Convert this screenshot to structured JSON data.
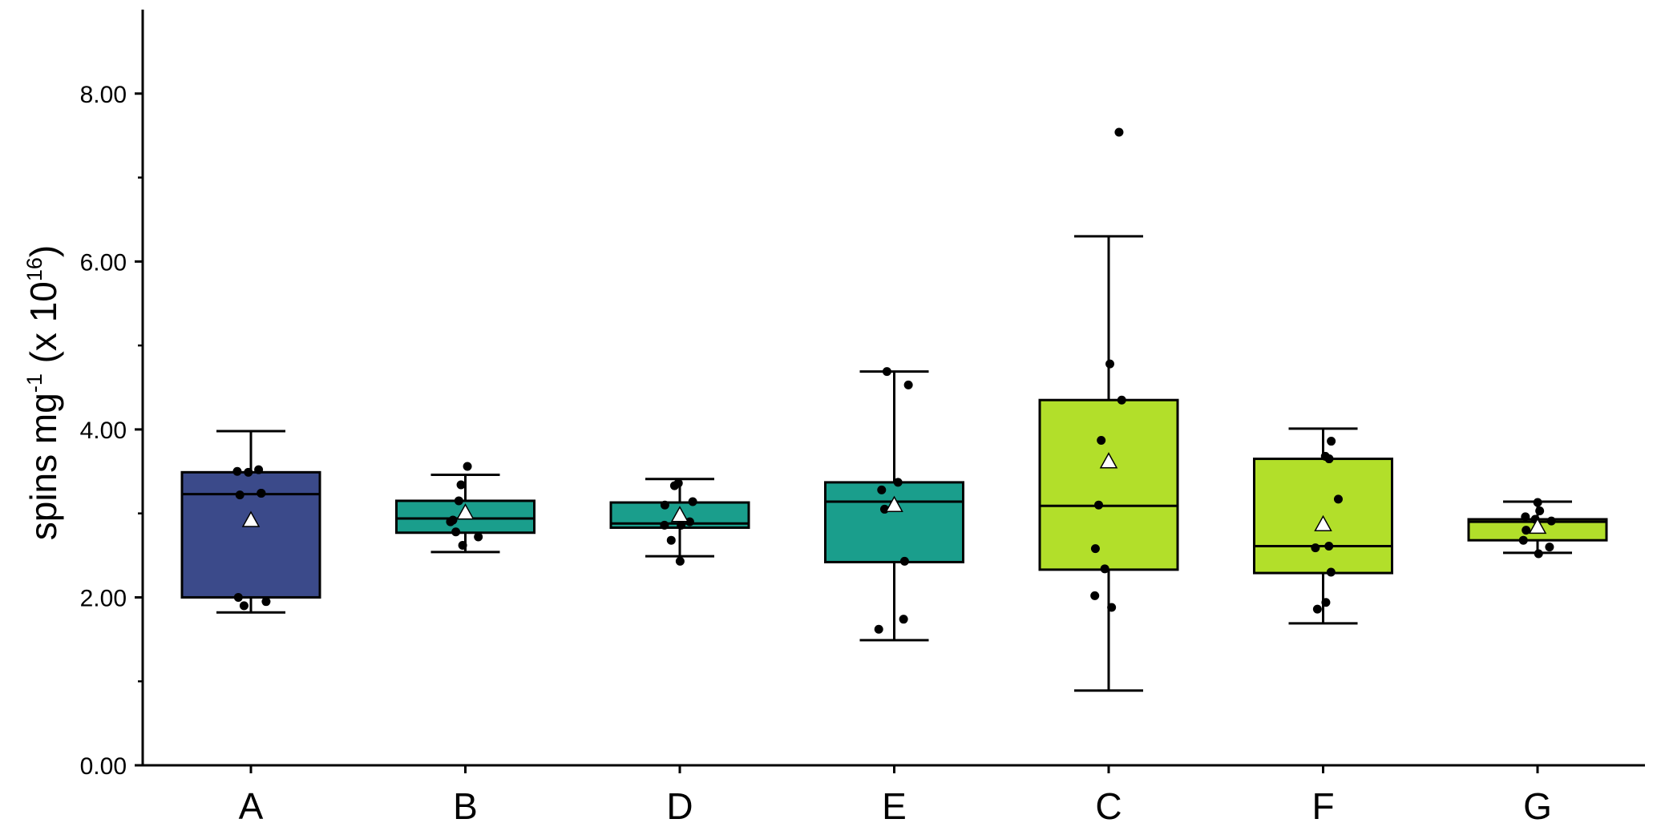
{
  "chart_data": {
    "type": "box",
    "categories": [
      "A",
      "B",
      "D",
      "E",
      "C",
      "F",
      "G"
    ],
    "ylabel": {
      "base": "spins mg",
      "exp1": "-1",
      "mid": " (x 10",
      "exp2": "16",
      "end": ")"
    },
    "ylim": [
      0,
      9
    ],
    "yticks": [
      0,
      2,
      4,
      6,
      8
    ],
    "ytick_labels": [
      "0.00",
      "2.00",
      "4.00",
      "6.00",
      "8.00"
    ],
    "y_minor_ticks": [
      1,
      3,
      5,
      7
    ],
    "grid": false,
    "series": [
      {
        "category": "A",
        "color": "#3b4a8a",
        "whisker_low": 1.82,
        "q1": 2.0,
        "median": 3.23,
        "q3": 3.49,
        "whisker_high": 3.98,
        "mean": 2.92,
        "points": [
          3.52,
          3.5,
          3.49,
          3.24,
          3.22,
          3.24,
          2.0,
          1.95,
          1.9
        ]
      },
      {
        "category": "B",
        "color": "#1a9e8c",
        "whisker_low": 2.54,
        "q1": 2.77,
        "median": 2.94,
        "q3": 3.15,
        "whisker_high": 3.46,
        "mean": 3.01,
        "points": [
          3.56,
          3.34,
          3.15,
          2.98,
          2.92,
          2.9,
          2.72,
          2.78,
          2.62
        ]
      },
      {
        "category": "D",
        "color": "#1a9e8c",
        "whisker_low": 2.49,
        "q1": 2.83,
        "median": 2.88,
        "q3": 3.13,
        "whisker_high": 3.41,
        "mean": 2.98,
        "points": [
          3.36,
          3.33,
          3.14,
          3.1,
          2.9,
          2.86,
          2.86,
          2.68,
          2.43
        ]
      },
      {
        "category": "E",
        "color": "#1a9e8c",
        "whisker_low": 1.49,
        "q1": 2.42,
        "median": 3.14,
        "q3": 3.37,
        "whisker_high": 4.69,
        "mean": 3.1,
        "points": [
          4.69,
          4.53,
          3.37,
          3.28,
          3.05,
          2.43,
          1.74,
          1.62
        ]
      },
      {
        "category": "C",
        "color": "#b2df2a",
        "whisker_low": 0.89,
        "q1": 2.33,
        "median": 3.09,
        "q3": 4.35,
        "whisker_high": 6.3,
        "mean": 3.62,
        "points": [
          7.54,
          4.78,
          4.35,
          3.87,
          3.1,
          2.58,
          2.34,
          2.02,
          1.88
        ]
      },
      {
        "category": "F",
        "color": "#b2df2a",
        "whisker_low": 1.69,
        "q1": 2.29,
        "median": 2.61,
        "q3": 3.65,
        "whisker_high": 4.01,
        "mean": 2.87,
        "points": [
          3.86,
          3.68,
          3.65,
          3.17,
          2.61,
          2.59,
          2.3,
          1.94,
          1.86
        ]
      },
      {
        "category": "G",
        "color": "#b2df2a",
        "whisker_low": 2.53,
        "q1": 2.68,
        "median": 2.9,
        "q3": 2.93,
        "whisker_high": 3.14,
        "mean": 2.84,
        "points": [
          3.13,
          3.03,
          2.96,
          2.93,
          2.91,
          2.8,
          2.68,
          2.6,
          2.52
        ]
      }
    ]
  }
}
